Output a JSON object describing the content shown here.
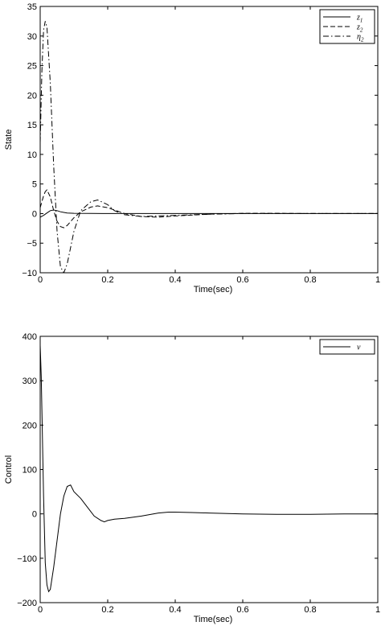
{
  "chart_data": [
    {
      "type": "line",
      "title": "",
      "xlabel": "Time(sec)",
      "ylabel": "State",
      "xlim": [
        0,
        1
      ],
      "ylim": [
        -10,
        35
      ],
      "xticks": [
        0,
        0.2,
        0.4,
        0.6,
        0.8,
        1
      ],
      "xtick_labels": [
        "0",
        "0.2",
        "0.4",
        "0.6",
        "0.8",
        "1"
      ],
      "yticks": [
        -10,
        -5,
        0,
        5,
        10,
        15,
        20,
        25,
        30,
        35
      ],
      "ytick_labels": [
        "−10",
        "−5",
        "0",
        "5",
        "10",
        "15",
        "20",
        "25",
        "30",
        "35"
      ],
      "grid": false,
      "legend_position": "top-right",
      "series": [
        {
          "name": "z1",
          "style": "solid",
          "x": [
            0,
            0.01,
            0.02,
            0.03,
            0.04,
            0.05,
            0.06,
            0.07,
            0.08,
            0.1,
            0.15,
            0.2,
            0.3,
            0.5,
            0.7,
            1.0
          ],
          "y": [
            -0.6,
            -0.3,
            0.1,
            0.5,
            0.6,
            0.5,
            0.3,
            0.2,
            0.1,
            0.05,
            0.02,
            0.0,
            0.0,
            0.0,
            0.0,
            0.0
          ]
        },
        {
          "name": "z2",
          "style": "dashed",
          "x": [
            0,
            0.005,
            0.01,
            0.015,
            0.02,
            0.03,
            0.04,
            0.05,
            0.06,
            0.07,
            0.08,
            0.1,
            0.12,
            0.15,
            0.17,
            0.2,
            0.22,
            0.25,
            0.3,
            0.35,
            0.4,
            0.5,
            0.6,
            0.7,
            0.8,
            1.0
          ],
          "y": [
            1.0,
            2.0,
            3.0,
            3.7,
            4.0,
            2.8,
            0.5,
            -1.3,
            -2.2,
            -2.4,
            -2.0,
            -0.7,
            0.3,
            1.1,
            1.3,
            1.0,
            0.6,
            0.0,
            -0.5,
            -0.6,
            -0.4,
            -0.1,
            0.05,
            0.05,
            0.0,
            0.0
          ]
        },
        {
          "name": "η2",
          "style": "dashdot",
          "x": [
            0,
            0.005,
            0.01,
            0.015,
            0.02,
            0.03,
            0.04,
            0.05,
            0.06,
            0.07,
            0.08,
            0.1,
            0.12,
            0.15,
            0.17,
            0.2,
            0.22,
            0.25,
            0.3,
            0.35,
            0.4,
            0.5,
            0.6,
            0.7,
            0.8,
            1.0
          ],
          "y": [
            12.0,
            24.0,
            31.0,
            32.5,
            31.5,
            22.0,
            8.0,
            -3.0,
            -9.0,
            -10.0,
            -8.5,
            -3.0,
            0.5,
            2.0,
            2.3,
            1.5,
            0.5,
            -0.2,
            -0.5,
            -0.4,
            -0.3,
            -0.1,
            0.0,
            0.0,
            0.0,
            0.0
          ]
        }
      ]
    },
    {
      "type": "line",
      "title": "",
      "xlabel": "Time(sec)",
      "ylabel": "Control",
      "xlim": [
        0,
        1
      ],
      "ylim": [
        -200,
        400
      ],
      "xticks": [
        0,
        0.2,
        0.4,
        0.6,
        0.8,
        1
      ],
      "xtick_labels": [
        "0",
        "0.2",
        "0.4",
        "0.6",
        "0.8",
        "1"
      ],
      "yticks": [
        -200,
        -100,
        0,
        100,
        200,
        300,
        400
      ],
      "ytick_labels": [
        "−200",
        "−100",
        "0",
        "100",
        "200",
        "300",
        "400"
      ],
      "grid": false,
      "legend_position": "top-right",
      "series": [
        {
          "name": "v",
          "style": "solid",
          "x": [
            0,
            0.003,
            0.006,
            0.01,
            0.015,
            0.02,
            0.025,
            0.03,
            0.04,
            0.05,
            0.06,
            0.07,
            0.08,
            0.09,
            0.1,
            0.12,
            0.14,
            0.16,
            0.18,
            0.19,
            0.2,
            0.22,
            0.25,
            0.3,
            0.35,
            0.38,
            0.4,
            0.45,
            0.5,
            0.6,
            0.7,
            0.8,
            0.9,
            1.0
          ],
          "y": [
            380,
            310,
            200,
            40,
            -110,
            -160,
            -175,
            -170,
            -120,
            -60,
            0,
            40,
            62,
            65,
            50,
            35,
            15,
            -5,
            -15,
            -18,
            -15,
            -12,
            -10,
            -5,
            2,
            4,
            4,
            3,
            2,
            0,
            -1,
            -1,
            0,
            0
          ]
        }
      ]
    }
  ]
}
